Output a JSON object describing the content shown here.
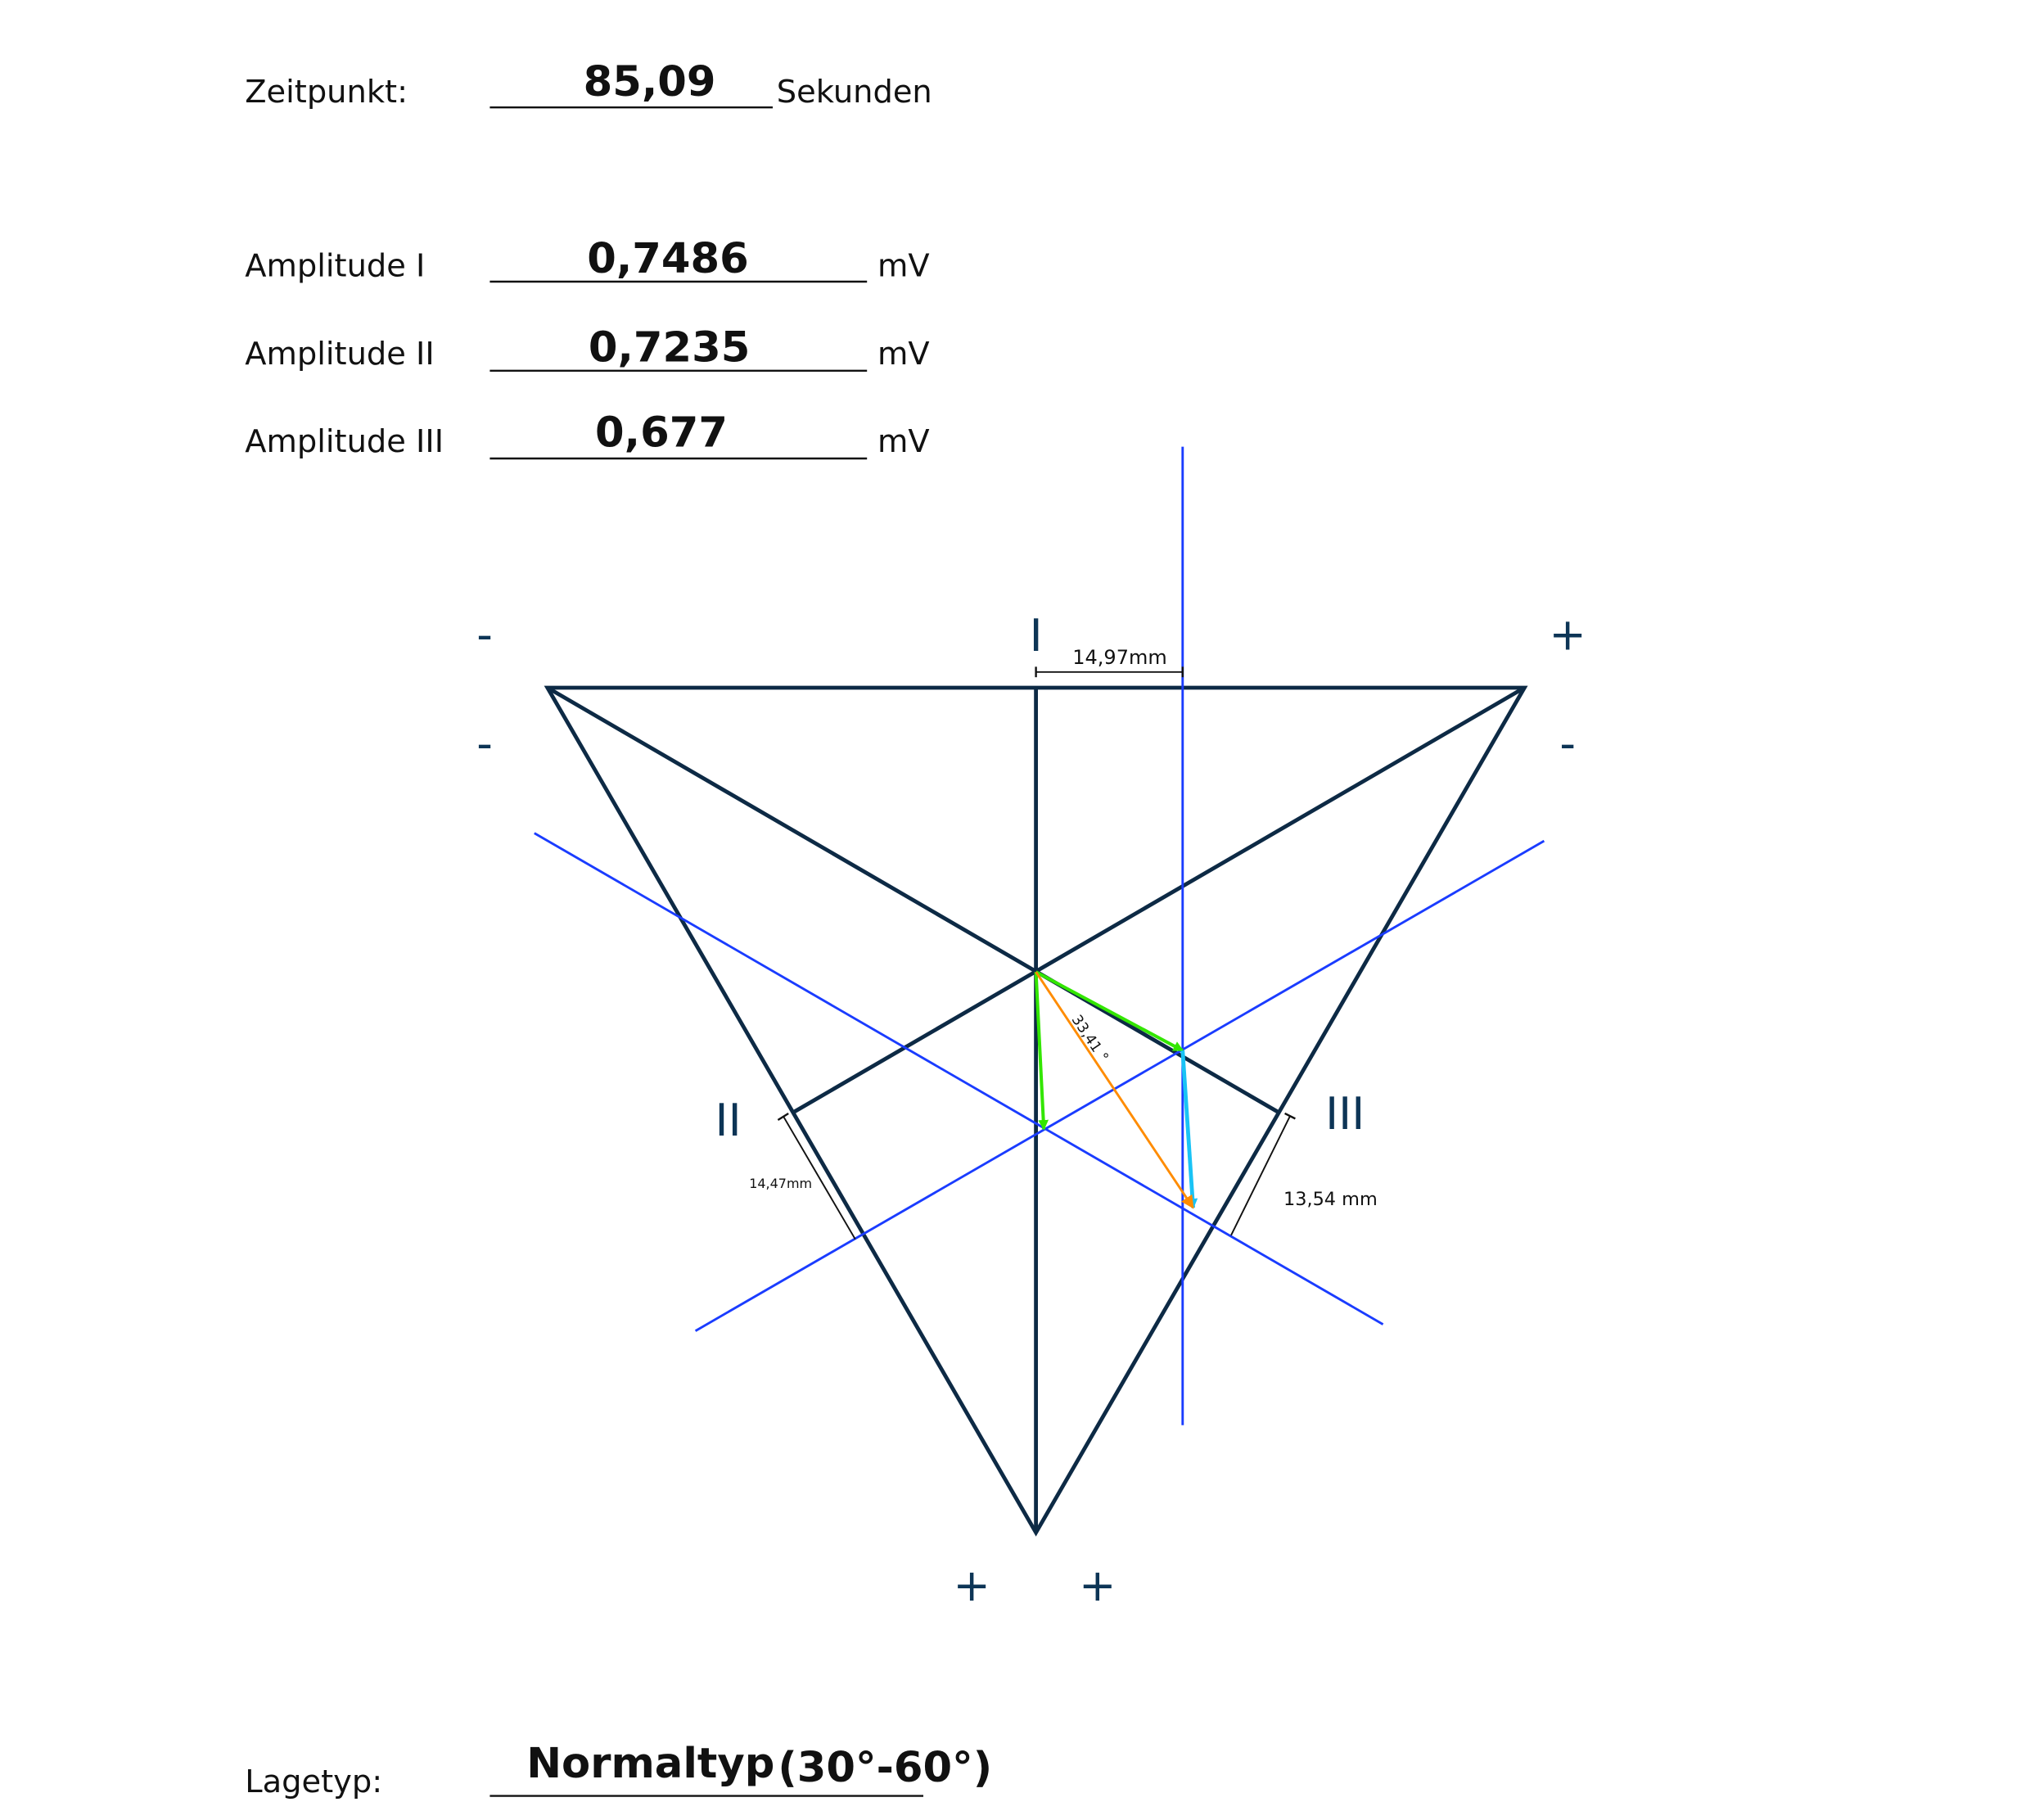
{
  "header": {
    "time_label": "Zeitpunkt:",
    "time_value": "85,09",
    "time_unit": "Sekunden"
  },
  "amplitudes": [
    {
      "label": "Amplitude I",
      "value": "0,7486",
      "unit": "mV"
    },
    {
      "label": "Amplitude II",
      "value": "0,7235",
      "unit": "mV"
    },
    {
      "label": "Amplitude III",
      "value": "0,677",
      "unit": "mV"
    }
  ],
  "diagram": {
    "lead_labels": {
      "I": "I",
      "II": "II",
      "III": "III"
    },
    "signs": {
      "top_left": "-",
      "top_right": "+",
      "left_lower": "-",
      "right_lower": "-",
      "bottom_left": "+",
      "bottom_right": "+"
    },
    "dim_I": "14,97mm",
    "dim_II": "14,47mm",
    "dim_III": "13,54 mm",
    "angle": "33,41 °",
    "colors": {
      "triangle": "#0d2a45",
      "projection": "#1a3cff",
      "lead_vectors": "#33e600",
      "lead_III_vector": "#19c3f5",
      "result_vector": "#ff8c00"
    }
  },
  "footer": {
    "label": "Lagetyp:",
    "value": "Normaltyp",
    "range": "(30°-60°)"
  }
}
